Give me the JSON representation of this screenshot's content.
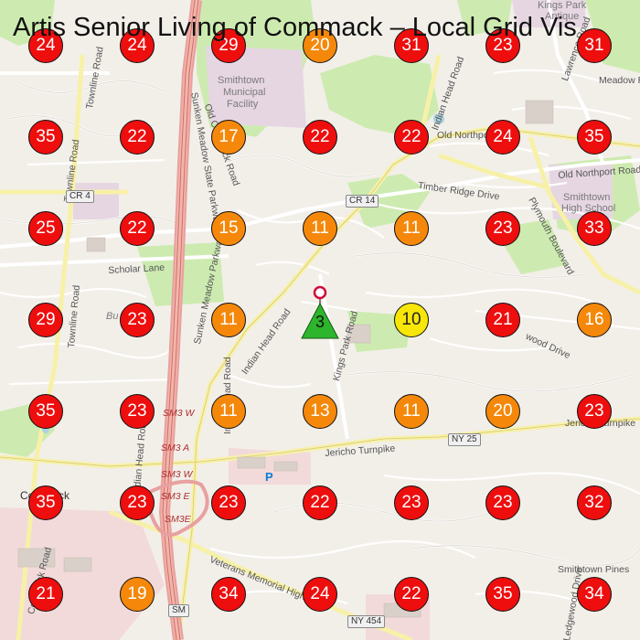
{
  "title": "Artis Senior Living of Commack – Local Grid Vis",
  "colors": {
    "red": "#ee0e0e",
    "orange": "#f5880a",
    "yellow": "#f7e608",
    "business_marker": "#2db52d",
    "pin": "#d10a3a"
  },
  "business": {
    "rank": "3",
    "icon": "triangle-pin-icon"
  },
  "grid": {
    "columns": 7,
    "rows": 7,
    "ranks": [
      [
        24,
        24,
        29,
        20,
        31,
        23,
        31
      ],
      [
        35,
        22,
        17,
        22,
        22,
        24,
        35
      ],
      [
        25,
        22,
        15,
        11,
        11,
        23,
        33
      ],
      [
        29,
        23,
        11,
        null,
        10,
        21,
        16
      ],
      [
        35,
        23,
        11,
        13,
        11,
        20,
        23
      ],
      [
        35,
        23,
        23,
        22,
        23,
        23,
        32
      ],
      [
        21,
        19,
        34,
        24,
        22,
        35,
        34
      ]
    ]
  },
  "map_labels": {
    "smithtown_municipal": "Smithtown",
    "municipal_2": "Municipal",
    "municipal_3": "Facility",
    "old_commack_road": "Old Commack Road",
    "sunken_meadow_1": "Sunken Meadow State Parkway",
    "sunken_meadow_2": "Sunken Meadow Parkway",
    "townline_road_1": "Townline Road",
    "townline_road_2": "Townline Road",
    "townline_road_3": "Townline Road",
    "indian_head_road_1": "Indian Head Road",
    "indian_head_road_2": "Indian Head Road",
    "indian_head_road_3": "Indian Head Road",
    "old_indian_head_road": "Old Indian Head Road",
    "old_northport_road_1": "Old Northport Road",
    "old_northport_road_2": "Old Northport Road",
    "timber_ridge_drive": "Timber Ridge Drive",
    "cr4": "CR 4",
    "cr14": "CR 14",
    "scholar_lane": "Scholar Lane",
    "kings_park_road": "Kings Park Road",
    "plymouth_boulevard": "Plymouth Boulevard",
    "smithtown_hs_1": "Smithtown",
    "smithtown_hs_2": "High School",
    "kings_park_1": "Kings Park",
    "kings_park_2": "Antique",
    "lawrence_road": "Lawrence Road",
    "meadow_road": "Meadow Ro",
    "wood_drive": "wood Drive",
    "jericho_turnpike": "Jericho Turnpike",
    "jericho_turnpike_2": "Jericho Turnpike",
    "ny25": "NY 25",
    "commack": "Commack",
    "commack_road": "Commack Road",
    "sm3w_1": "SM3 W",
    "sm3w_2": "SM3 W",
    "sm3a": "SM3 A",
    "sm3e_1": "SM3 E",
    "sm3e_2": "SM3E",
    "sm": "SM",
    "veterans_memorial": "Veterans Memorial High",
    "ny454": "NY 454",
    "smithtown_pines": "Smithtown Pines",
    "ledgewood_drive": "Ledgewood Drive",
    "bu": "Bu",
    "parking": "P"
  }
}
